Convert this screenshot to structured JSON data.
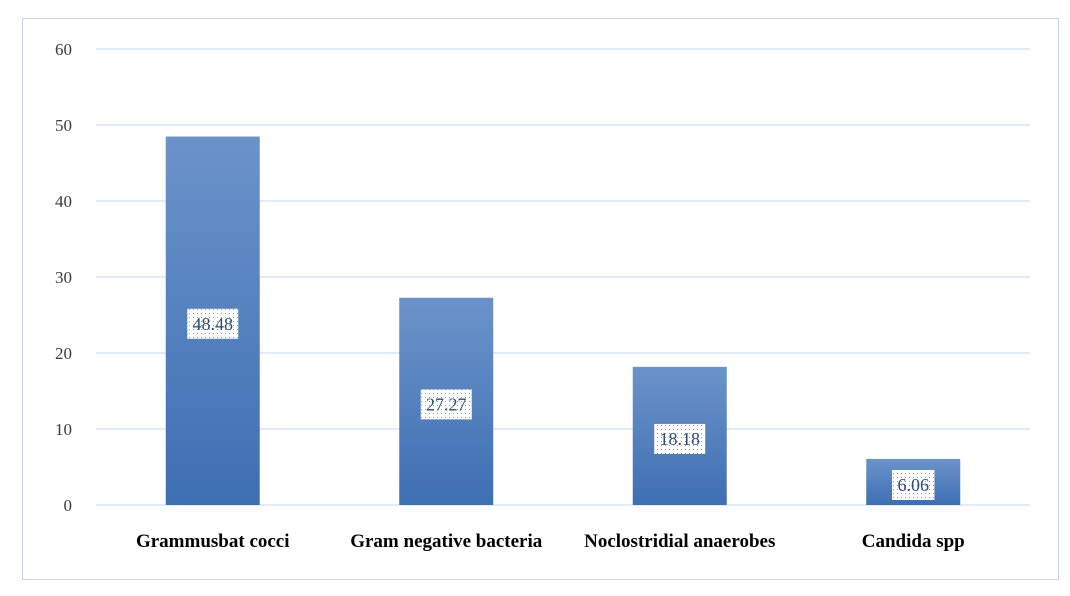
{
  "chart_data": {
    "type": "bar",
    "title": "",
    "xlabel": "",
    "ylabel": "",
    "categories": [
      "Grammusbat cocci",
      "Gram negative bacteria",
      "Noclostridial anaerobes",
      "Candida spp"
    ],
    "values": [
      48.48,
      27.27,
      18.18,
      6.06
    ],
    "data_labels": [
      "48.48",
      "27.27",
      "18.18",
      "6.06"
    ],
    "ylim": [
      0,
      60
    ],
    "yticks": [
      0,
      10,
      20,
      30,
      40,
      50,
      60
    ],
    "grid": true,
    "legend": "none",
    "colors": {
      "bar_top": "#6b93c9",
      "bar_bottom": "#3e6fb3",
      "grid": "#d0ddef",
      "tick_text": "#3b3b3b",
      "label_text": "#2e4a78"
    }
  }
}
